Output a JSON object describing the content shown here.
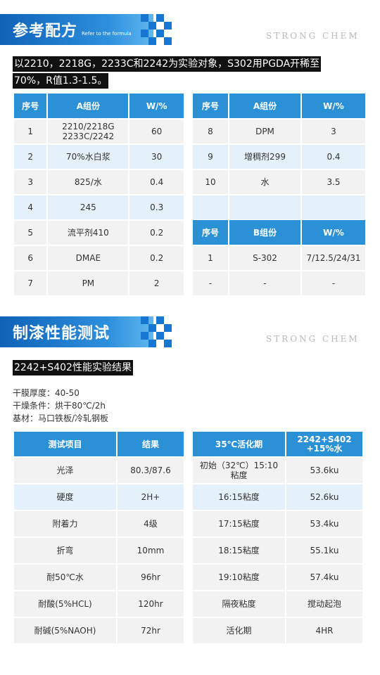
{
  "section1": {
    "title": "参考配方",
    "subtitle": "Refer to the formula",
    "brand": "STRONG CHEM",
    "intro_line1": "以2210，2218G，2233C和2242为实验对象，S302用PGDA开稀至",
    "intro_line2": "70%，R值1.3-1.5。",
    "table_a_left": {
      "headers": [
        "序号",
        "A组份",
        "W/%"
      ],
      "rows": [
        [
          "1",
          "2210/2218G\n2233C/2242",
          "60"
        ],
        [
          "2",
          "70%水白浆",
          "30"
        ],
        [
          "3",
          "825/水",
          "0.4"
        ],
        [
          "4",
          "245",
          "0.3"
        ],
        [
          "5",
          "流平剂410",
          "0.2"
        ],
        [
          "6",
          "DMAE",
          "0.2"
        ],
        [
          "7",
          "PM",
          "2"
        ]
      ]
    },
    "table_a_right": {
      "headers": [
        "序号",
        "A组份",
        "W/%"
      ],
      "rows": [
        [
          "8",
          "DPM",
          "3"
        ],
        [
          "9",
          "增稠剂299",
          "0.4"
        ],
        [
          "10",
          "水",
          "3.5"
        ],
        [
          "",
          "",
          ""
        ]
      ]
    },
    "table_b": {
      "headers": [
        "序号",
        "B组份",
        "W/%"
      ],
      "rows": [
        [
          "1",
          "S-302",
          "7/12.5/24/31"
        ],
        [
          "-",
          "-",
          "-"
        ]
      ]
    }
  },
  "section2": {
    "title": "制漆性能测试",
    "brand": "STRONG CHEM",
    "result_title": "2242+S402性能实验结果",
    "notes": [
      "干膜厚度：40-50",
      "干燥条件：烘干80℃/2h",
      "基材：马口铁板/冷轧钢板"
    ],
    "perf_table": {
      "headers": [
        "测试项目",
        "结果"
      ],
      "rows": [
        [
          "光泽",
          "80.3/87.6"
        ],
        [
          "硬度",
          "2H+"
        ],
        [
          "附着力",
          "4级"
        ],
        [
          "折弯",
          "10mm"
        ],
        [
          "耐50℃水",
          "96hr"
        ],
        [
          "耐酸(5%HCL)",
          "120hr"
        ],
        [
          "耐碱(5%NAOH)",
          "72hr"
        ]
      ]
    },
    "activation_table": {
      "headers": [
        "35℃活化期",
        "2242+S402\n+15%水"
      ],
      "rows": [
        [
          "初始（32℃）15:10\n粘度",
          "53.6ku"
        ],
        [
          "16:15粘度",
          "52.6ku"
        ],
        [
          "17:15粘度",
          "53.4ku"
        ],
        [
          "18:15粘度",
          "55.1ku"
        ],
        [
          "19:10粘度",
          "57.4ku"
        ],
        [
          "隔夜粘度",
          "搅动起泡"
        ],
        [
          "活化期",
          "4HR"
        ]
      ]
    }
  }
}
